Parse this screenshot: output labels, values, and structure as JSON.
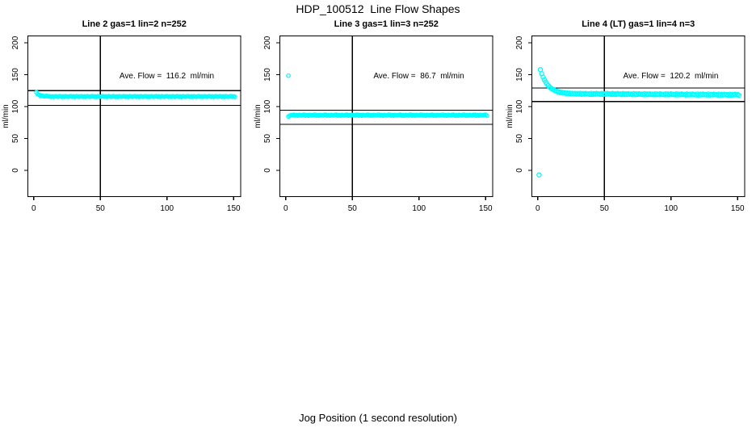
{
  "title": "HDP_100512  Line Flow Shapes",
  "xlabel": "Jog Position (1 second resolution)",
  "colors": {
    "points": "#00ffff",
    "axis": "#000000",
    "background": "#ffffff"
  },
  "chart_data": [
    {
      "type": "scatter",
      "title": "Line 2 gas=1 lin=2 n=252",
      "annotation": "Ave. Flow =  116.2  ml/min",
      "ave_flow_ml_min": 116.2,
      "n": 252,
      "ylabel": "ml/min",
      "xlim": [
        -4.4,
        155.3
      ],
      "ylim": [
        -41.1,
        210.8
      ],
      "xticks": [
        0,
        50,
        100,
        150
      ],
      "yticks": [
        0,
        50,
        100,
        150,
        200
      ],
      "vline": 50,
      "hlines": [
        125,
        102
      ],
      "marker_px": 2.2,
      "outliers": [],
      "series": {
        "x_start": 2,
        "x_step": 1,
        "y": [
          122.3,
          119.4,
          118.7,
          117.0,
          117.4,
          116.6,
          116.0,
          116.5,
          116.6,
          115.9,
          116.3,
          115.4,
          116.0,
          115.2,
          116.2,
          115.8,
          115.5,
          116.1,
          116.3,
          115.4,
          116.0,
          115.2,
          116.2,
          115.8,
          115.5,
          116.1,
          116.3,
          115.4,
          116.0,
          115.2,
          116.2,
          115.8,
          115.5,
          116.1,
          116.3,
          115.4,
          116.0,
          115.2,
          116.2,
          115.8,
          115.5,
          116.1,
          116.3,
          115.4,
          116.0,
          115.2,
          116.2,
          115.8,
          115.5,
          116.1,
          116.3,
          115.4,
          116.0,
          115.2,
          116.2,
          115.8,
          115.5,
          116.1,
          116.3,
          115.4,
          116.0,
          115.2,
          116.2,
          115.8,
          115.5,
          116.1,
          116.3,
          115.4,
          116.0,
          115.2,
          116.2,
          115.8,
          115.5,
          116.1,
          116.3,
          115.4,
          116.0,
          115.2,
          116.2,
          115.8,
          115.5,
          116.1,
          116.3,
          115.4,
          116.0,
          115.2,
          116.2,
          115.8,
          115.5,
          116.1,
          116.3,
          115.4,
          116.0,
          115.2,
          116.2,
          115.8,
          115.5,
          116.1,
          116.3,
          115.4,
          116.0,
          115.2,
          116.2,
          115.8,
          115.5,
          116.1,
          116.3,
          115.4,
          116.0,
          115.2,
          116.2,
          115.8,
          115.5,
          116.1,
          116.3,
          115.4,
          116.0,
          115.2,
          116.2,
          115.8,
          115.5,
          116.1,
          116.3,
          115.4,
          116.0,
          115.2,
          116.2,
          115.8,
          115.5,
          116.1,
          116.3,
          115.4,
          116.0,
          115.2,
          116.2,
          115.8,
          115.5,
          116.1,
          116.3,
          115.4,
          116.0,
          115.2,
          116.2,
          115.8,
          115.5,
          116.1,
          116.3,
          115.4,
          116.0,
          115.2
        ]
      }
    },
    {
      "type": "scatter",
      "title": "Line 3 gas=1 lin=3 n=252",
      "annotation": "Ave. Flow =  86.7  ml/min",
      "ave_flow_ml_min": 86.7,
      "n": 252,
      "ylabel": "ml/min",
      "xlim": [
        -4.4,
        155.3
      ],
      "ylim": [
        -41.1,
        210.8
      ],
      "xticks": [
        0,
        50,
        100,
        150
      ],
      "yticks": [
        0,
        50,
        100,
        150,
        200
      ],
      "vline": 50,
      "hlines": [
        94.5,
        72
      ],
      "marker_px": 2.2,
      "outliers": [
        [
          2,
          148.5
        ]
      ],
      "series": {
        "x_start": 2,
        "x_step": 1,
        "y": [
          84.6,
          85.9,
          86.8,
          86.2,
          87.2,
          86.0,
          86.8,
          85.9,
          87.0,
          86.5,
          86.2,
          87.1,
          87.2,
          86.0,
          86.8,
          85.9,
          87.0,
          86.5,
          86.2,
          87.1,
          87.2,
          86.0,
          86.8,
          85.9,
          87.0,
          86.5,
          86.2,
          87.1,
          87.2,
          86.0,
          86.8,
          85.9,
          87.0,
          86.5,
          86.2,
          87.1,
          87.2,
          86.0,
          86.8,
          85.9,
          87.0,
          86.5,
          86.2,
          87.1,
          87.2,
          86.0,
          86.8,
          85.9,
          87.0,
          86.5,
          86.2,
          87.1,
          87.2,
          86.0,
          86.8,
          85.9,
          87.0,
          86.5,
          86.2,
          87.1,
          87.2,
          86.0,
          86.8,
          85.9,
          87.0,
          86.5,
          86.2,
          87.1,
          87.2,
          86.0,
          86.8,
          85.9,
          87.0,
          86.5,
          86.2,
          87.1,
          87.2,
          86.0,
          86.8,
          85.9,
          87.0,
          86.5,
          86.2,
          87.1,
          87.2,
          86.0,
          86.8,
          85.9,
          87.0,
          86.5,
          86.2,
          87.1,
          87.2,
          86.0,
          86.8,
          85.9,
          87.0,
          86.5,
          86.2,
          87.1,
          87.2,
          86.0,
          86.8,
          85.9,
          87.0,
          86.5,
          86.2,
          87.1,
          87.2,
          86.0,
          86.8,
          85.9,
          87.0,
          86.5,
          86.2,
          87.1,
          87.2,
          86.0,
          86.8,
          85.9,
          87.0,
          86.5,
          86.2,
          87.1,
          87.2,
          86.0,
          86.8,
          85.9,
          87.0,
          86.5,
          86.2,
          87.1,
          87.2,
          86.0,
          86.8,
          85.9,
          87.0,
          86.5,
          86.2,
          87.1,
          87.2,
          86.0,
          86.8,
          85.9,
          87.0,
          86.5,
          86.2,
          87.1,
          87.2,
          86.0
        ]
      }
    },
    {
      "type": "scatter",
      "title": "Line 4 (LT) gas=1 lin=4 n=3",
      "annotation": "Ave. Flow =  120.2  ml/min",
      "ave_flow_ml_min": 120.2,
      "n": 3,
      "ylabel": "ml/min",
      "xlim": [
        -4.4,
        155.3
      ],
      "ylim": [
        -41.1,
        210.8
      ],
      "xticks": [
        0,
        50,
        100,
        150
      ],
      "yticks": [
        0,
        50,
        100,
        150,
        200
      ],
      "vline": 50,
      "hlines": [
        129,
        108
      ],
      "marker_px": 2.6,
      "outliers": [
        [
          1,
          -7
        ]
      ],
      "series": {
        "x_start": 2,
        "x_step": 1,
        "y": [
          157.9,
          151.6,
          146.3,
          141.9,
          138.3,
          135.2,
          132.7,
          130.6,
          128.8,
          127.3,
          126.5,
          124.7,
          124.6,
          123.1,
          123.3,
          122.0,
          122.4,
          121.2,
          121.8,
          120.7,
          121.3,
          120.3,
          121.0,
          120.1,
          120.8,
          119.9,
          120.6,
          119.8,
          120.5,
          119.7,
          120.8,
          119.3,
          120.4,
          119.5,
          120.7,
          119.8,
          120.1,
          119.2,
          120.7,
          119.2,
          120.3,
          119.4,
          120.6,
          119.7,
          120.0,
          119.1,
          120.6,
          119.1,
          120.2,
          119.3,
          120.5,
          119.6,
          119.9,
          119.0,
          120.5,
          119.0,
          120.1,
          119.2,
          120.4,
          119.5,
          119.8,
          118.9,
          120.4,
          118.9,
          120.0,
          119.1,
          120.3,
          119.4,
          119.7,
          118.8,
          120.3,
          118.8,
          119.9,
          119.0,
          120.2,
          119.3,
          119.6,
          118.7,
          120.2,
          118.7,
          119.8,
          118.9,
          120.1,
          119.2,
          119.5,
          118.6,
          120.1,
          118.6,
          119.7,
          118.8,
          120.0,
          119.1,
          119.4,
          118.5,
          120.0,
          118.5,
          119.6,
          118.7,
          119.9,
          119.0,
          119.3,
          118.4,
          119.9,
          118.4,
          119.5,
          118.6,
          119.8,
          118.9,
          119.2,
          118.3,
          119.8,
          118.3,
          119.4,
          118.5,
          119.7,
          118.8,
          119.1,
          118.2,
          119.7,
          118.2,
          119.3,
          118.4,
          119.6,
          118.7,
          119.0,
          118.1,
          119.6,
          118.1,
          119.2,
          118.3,
          119.5,
          118.6,
          118.9,
          118.0,
          119.5,
          118.0,
          119.1,
          118.2,
          119.4,
          118.5,
          118.8,
          117.9,
          119.4,
          117.9,
          119.0,
          118.1,
          119.3,
          118.4,
          118.7,
          117.8
        ]
      }
    }
  ]
}
